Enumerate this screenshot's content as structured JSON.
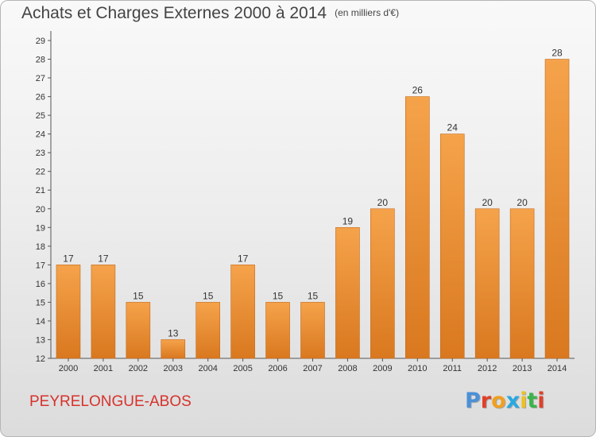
{
  "title": "Achats et Charges Externes 2000 à 2014",
  "unit_note": "(en milliers d'€)",
  "place": "PEYRELONGUE-ABOS",
  "logo": {
    "text": "Proxiti",
    "letters": [
      "P",
      "r",
      "o",
      "x",
      "i",
      "t",
      "i"
    ],
    "colors": [
      "#4a90d9",
      "#e0402a",
      "#f0a020",
      "#2aa8e0",
      "#f0c020",
      "#3cb44a",
      "#e0402a"
    ]
  },
  "colors": {
    "bar_top": "#f5a34b",
    "bar_bottom": "#d9781f",
    "bar_edge": "#c4691a",
    "place_text": "#d7322c"
  },
  "chart_data": {
    "type": "bar",
    "categories": [
      "2000",
      "2001",
      "2002",
      "2003",
      "2004",
      "2005",
      "2006",
      "2007",
      "2008",
      "2009",
      "2010",
      "2011",
      "2012",
      "2013",
      "2014"
    ],
    "values": [
      17,
      17,
      15,
      13,
      15,
      17,
      15,
      15,
      19,
      20,
      26,
      24,
      20,
      20,
      28
    ],
    "title": "Achats et Charges Externes 2000 à 2014",
    "ylim": [
      12,
      29
    ],
    "yticks": [
      12,
      13,
      14,
      15,
      16,
      17,
      18,
      19,
      20,
      21,
      22,
      23,
      24,
      25,
      26,
      27,
      28,
      29
    ],
    "grid": false,
    "data_labels": true
  }
}
